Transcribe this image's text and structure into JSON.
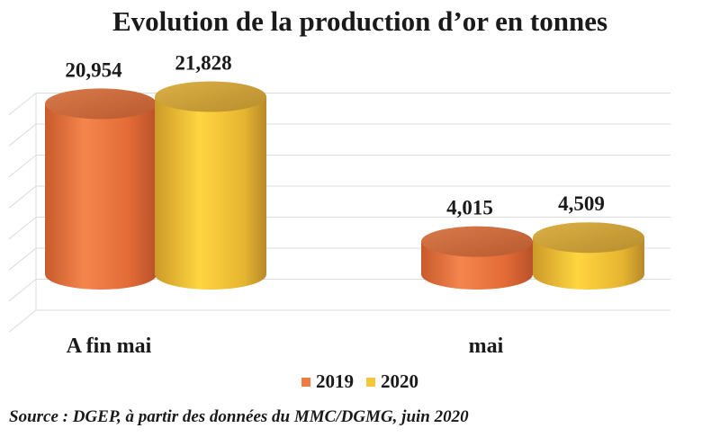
{
  "chart_data": {
    "type": "bar",
    "title": "Evolution de la production d’or en tonnes",
    "categories": [
      "A fin mai",
      "mai"
    ],
    "series": [
      {
        "name": "2019",
        "values": [
          20.954,
          4.015
        ],
        "labels": [
          "20,954",
          "4,015"
        ],
        "color": "#ee7a45"
      },
      {
        "name": "2020",
        "values": [
          21.828,
          4.509
        ],
        "labels": [
          "21,828",
          "4,509"
        ],
        "color": "#f4c73a"
      }
    ],
    "ylim": [
      0,
      25
    ],
    "grid": true,
    "legend_position": "bottom",
    "source": "Source : DGEP, à partir des données du MMC/DGMG, juin 2020"
  }
}
